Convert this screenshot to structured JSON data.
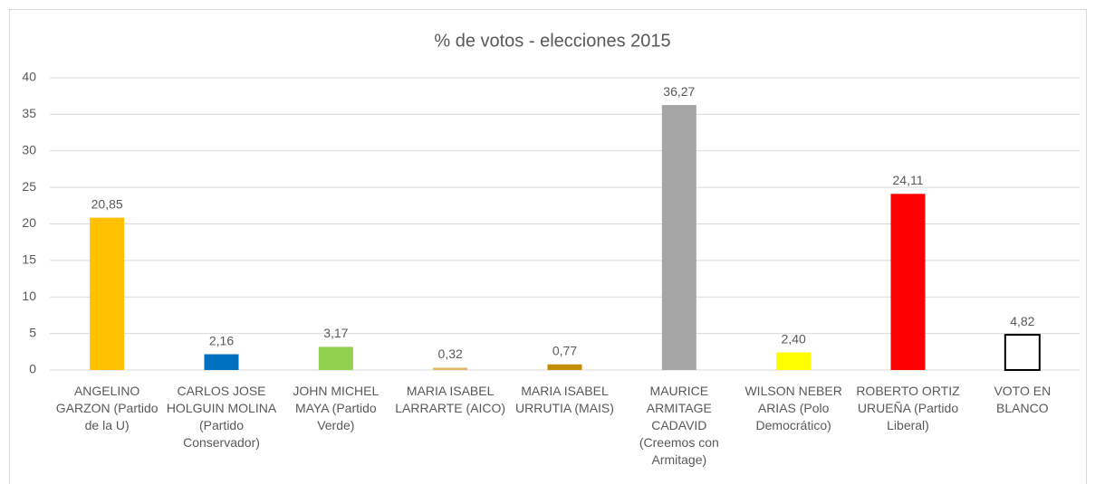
{
  "chart_data": {
    "type": "bar",
    "title": "% de votos - elecciones 2015",
    "categories": [
      "ANGELINO GARZON (Partido de la U)",
      "CARLOS JOSE HOLGUIN MOLINA (Partido Conservador)",
      "JOHN MICHEL MAYA (Partido Verde)",
      "MARIA ISABEL LARRARTE (AICO)",
      "MARIA ISABEL URRUTIA (MAIS)",
      "MAURICE ARMITAGE CADAVID (Creemos con Armitage)",
      "WILSON NEBER ARIAS (Polo Democrático)",
      "ROBERTO ORTIZ URUEÑA (Partido Liberal)",
      "VOTO EN BLANCO"
    ],
    "values": [
      20.85,
      2.16,
      3.17,
      0.32,
      0.77,
      36.27,
      2.4,
      24.11,
      4.82
    ],
    "value_labels": [
      "20,85",
      "2,16",
      "3,17",
      "0,32",
      "0,77",
      "36,27",
      "2,40",
      "24,11",
      "4,82"
    ],
    "colors": [
      "#FFC000",
      "#0070C0",
      "#92D050",
      "#E2B96A",
      "#BF8F00",
      "#A5A5A5",
      "#FFFF00",
      "#FF0000",
      "#FFFFFF"
    ],
    "edgecolors": [
      "none",
      "none",
      "none",
      "none",
      "none",
      "none",
      "none",
      "none",
      "#000000"
    ],
    "ylim": [
      0,
      40
    ],
    "yticks": [
      0,
      5,
      10,
      15,
      20,
      25,
      30,
      35,
      40
    ],
    "grid": true
  }
}
